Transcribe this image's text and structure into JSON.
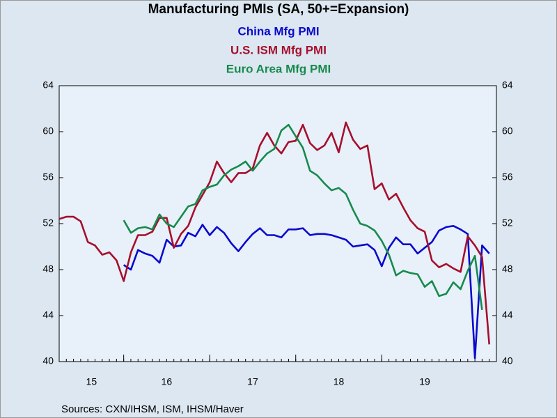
{
  "chart_data": {
    "type": "line",
    "title": "Manufacturing PMIs (SA, 50+=Expansion)",
    "source": "Sources:  CXN/IHSM, ISM, IHSM/Haver",
    "x": [
      "2015-04",
      "2015-05",
      "2015-06",
      "2015-07",
      "2015-08",
      "2015-09",
      "2015-10",
      "2015-11",
      "2015-12",
      "2016-01",
      "2016-02",
      "2016-03",
      "2016-04",
      "2016-05",
      "2016-06",
      "2016-07",
      "2016-08",
      "2016-09",
      "2016-10",
      "2016-11",
      "2016-12",
      "2017-01",
      "2017-02",
      "2017-03",
      "2017-04",
      "2017-05",
      "2017-06",
      "2017-07",
      "2017-08",
      "2017-09",
      "2017-10",
      "2017-11",
      "2017-12",
      "2018-01",
      "2018-02",
      "2018-03",
      "2018-04",
      "2018-05",
      "2018-06",
      "2018-07",
      "2018-08",
      "2018-09",
      "2018-10",
      "2018-11",
      "2018-12",
      "2019-01",
      "2019-02",
      "2019-03",
      "2019-04",
      "2019-05",
      "2019-06",
      "2019-07",
      "2019-08",
      "2019-09",
      "2019-10",
      "2019-11",
      "2019-12",
      "2020-01",
      "2020-02",
      "2020-03",
      "2020-04"
    ],
    "xlim": [
      "2015-04",
      "2020-05"
    ],
    "xticks": [
      {
        "value": "2015",
        "label": "15"
      },
      {
        "value": "2016",
        "label": "16"
      },
      {
        "value": "2017",
        "label": "17"
      },
      {
        "value": "2018",
        "label": "18"
      },
      {
        "value": "2019",
        "label": "19"
      }
    ],
    "ylim": [
      40,
      64
    ],
    "yticks": [
      40,
      44,
      48,
      52,
      56,
      60,
      64
    ],
    "grid": false,
    "series": [
      {
        "name": "China Mfg PMI",
        "color": "#0a0acc",
        "values": [
          null,
          null,
          null,
          null,
          null,
          null,
          null,
          null,
          null,
          48.4,
          48.0,
          49.7,
          49.4,
          49.2,
          48.6,
          50.6,
          50.0,
          50.1,
          51.2,
          50.9,
          51.9,
          51.0,
          51.7,
          51.2,
          50.3,
          49.6,
          50.4,
          51.1,
          51.6,
          51.0,
          51.0,
          50.8,
          51.5,
          51.5,
          51.6,
          51.0,
          51.1,
          51.1,
          51.0,
          50.8,
          50.6,
          50.0,
          50.1,
          50.2,
          49.7,
          48.3,
          49.9,
          50.8,
          50.2,
          50.2,
          49.4,
          49.9,
          50.4,
          51.4,
          51.7,
          51.8,
          51.5,
          51.1,
          40.3,
          50.1,
          49.4
        ]
      },
      {
        "name": "U.S. ISM Mfg PMI",
        "color": "#a50f2d",
        "values": [
          52.4,
          52.6,
          52.6,
          52.2,
          50.4,
          50.1,
          49.3,
          49.5,
          48.8,
          47.0,
          49.5,
          51.0,
          51.0,
          51.3,
          52.5,
          52.5,
          49.9,
          51.1,
          51.8,
          53.4,
          54.5,
          55.6,
          57.4,
          56.4,
          55.6,
          56.4,
          56.4,
          56.8,
          58.8,
          59.9,
          58.8,
          58.1,
          59.1,
          59.2,
          60.6,
          59.0,
          58.4,
          58.8,
          59.9,
          58.2,
          60.8,
          59.3,
          58.5,
          58.8,
          55.0,
          55.5,
          54.1,
          54.6,
          53.4,
          52.3,
          51.6,
          51.3,
          48.8,
          48.2,
          48.5,
          48.1,
          47.8,
          50.9,
          50.1,
          49.1,
          41.5
        ]
      },
      {
        "name": "Euro Area Mfg PMI",
        "color": "#168a4c",
        "values": [
          null,
          null,
          null,
          null,
          null,
          null,
          null,
          null,
          null,
          52.3,
          51.2,
          51.6,
          51.7,
          51.5,
          52.8,
          52.0,
          51.7,
          52.6,
          53.5,
          53.7,
          54.9,
          55.2,
          55.4,
          56.2,
          56.7,
          57.0,
          57.4,
          56.6,
          57.4,
          58.1,
          58.5,
          60.1,
          60.6,
          59.6,
          58.6,
          56.6,
          56.2,
          55.5,
          54.9,
          55.1,
          54.6,
          53.2,
          52.0,
          51.8,
          51.4,
          50.5,
          49.3,
          47.5,
          47.9,
          47.7,
          47.6,
          46.5,
          47.0,
          45.7,
          45.9,
          46.9,
          46.3,
          47.9,
          49.2,
          44.5,
          null
        ]
      }
    ]
  }
}
